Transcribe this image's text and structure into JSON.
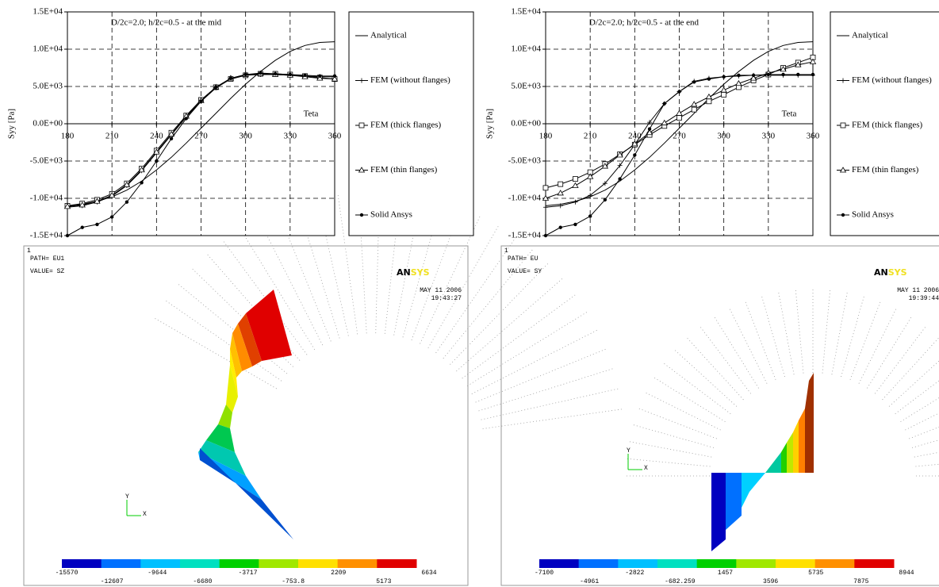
{
  "chart_data": [
    {
      "type": "line",
      "annotation": "D/2c=2.0; h/2c=0.5 - at the mid",
      "y_label": "Syy [Pa]",
      "x_label": "Teta",
      "x": [
        180,
        190,
        200,
        210,
        220,
        230,
        240,
        250,
        260,
        270,
        280,
        290,
        300,
        310,
        320,
        330,
        340,
        350,
        360
      ],
      "xlim": [
        180,
        360
      ],
      "xticks": [
        180,
        210,
        240,
        270,
        300,
        330,
        360
      ],
      "ylim": [
        -15000,
        15000
      ],
      "yticks": [
        {
          "value": -15000,
          "label": "-1.5E+04"
        },
        {
          "value": -10000,
          "label": "-1.0E+04"
        },
        {
          "value": -5000,
          "label": "-5.0E+03"
        },
        {
          "value": 0,
          "label": "0.0E+00"
        },
        {
          "value": 5000,
          "label": "5.0E+03"
        },
        {
          "value": 10000,
          "label": "1.0E+04"
        },
        {
          "value": 15000,
          "label": "1.5E+04"
        }
      ],
      "grid": true,
      "series": [
        {
          "name": "Analytical",
          "color": "#000000",
          "marker": "none",
          "values": [
            -11000,
            -10800,
            -10400,
            -9800,
            -8900,
            -7700,
            -6200,
            -4500,
            -2600,
            -600,
            1400,
            3400,
            5300,
            7000,
            8500,
            9700,
            10500,
            10900,
            11000
          ]
        },
        {
          "name": "FEM (without flanges)",
          "color": "#000000",
          "marker": "plus",
          "values": [
            -11200,
            -11000,
            -10500,
            -9700,
            -8300,
            -6300,
            -3900,
            -1500,
            900,
            3000,
            4800,
            6000,
            6500,
            6600,
            6600,
            6500,
            6400,
            6300,
            6300
          ]
        },
        {
          "name": "FEM (thick flanges)",
          "color": "#000000",
          "marker": "square",
          "values": [
            -11000,
            -10700,
            -10200,
            -9400,
            -8000,
            -6000,
            -3600,
            -1200,
            1100,
            3200,
            4900,
            6000,
            6500,
            6700,
            6700,
            6600,
            6400,
            6200,
            6000
          ]
        },
        {
          "name": "FEM (thin flanges)",
          "color": "#000000",
          "marker": "triangle",
          "values": [
            -11100,
            -10900,
            -10400,
            -9600,
            -8200,
            -6200,
            -3800,
            -1400,
            1000,
            3100,
            4900,
            6100,
            6600,
            6700,
            6600,
            6500,
            6300,
            6100,
            6000
          ]
        },
        {
          "name": "Solid Ansys",
          "color": "#000000",
          "marker": "dot",
          "values": [
            -15000,
            -13900,
            -13500,
            -12500,
            -10500,
            -7900,
            -5000,
            -2000,
            700,
            3000,
            4900,
            6100,
            6600,
            6800,
            6700,
            6600,
            6500,
            6400,
            6400
          ]
        }
      ]
    },
    {
      "type": "line",
      "annotation": "D/2c=2.0; h/2c=0.5 - at the end",
      "y_label": "Syy [Pa]",
      "x_label": "Teta",
      "x": [
        180,
        190,
        200,
        210,
        220,
        230,
        240,
        250,
        260,
        270,
        280,
        290,
        300,
        310,
        320,
        330,
        340,
        350,
        360
      ],
      "xlim": [
        180,
        360
      ],
      "xticks": [
        180,
        210,
        240,
        270,
        300,
        330,
        360
      ],
      "ylim": [
        -15000,
        15000
      ],
      "yticks": [
        {
          "value": -15000,
          "label": "-1.5E+04"
        },
        {
          "value": -10000,
          "label": "-1.0E+04"
        },
        {
          "value": -5000,
          "label": "-5.0E+03"
        },
        {
          "value": 0,
          "label": "0.0E+00"
        },
        {
          "value": 5000,
          "label": "5.0E+03"
        },
        {
          "value": 10000,
          "label": "1.0E+04"
        },
        {
          "value": 15000,
          "label": "1.5E+04"
        }
      ],
      "grid": true,
      "series": [
        {
          "name": "Analytical",
          "color": "#000000",
          "marker": "none",
          "values": [
            -11000,
            -10800,
            -10400,
            -9800,
            -8900,
            -7700,
            -6200,
            -4500,
            -2600,
            -600,
            1400,
            3400,
            5300,
            7000,
            8500,
            9700,
            10500,
            10900,
            11000
          ]
        },
        {
          "name": "FEM (without flanges)",
          "color": "#000000",
          "marker": "plus",
          "values": [
            -11200,
            -11000,
            -10500,
            -9600,
            -8000,
            -5600,
            -2800,
            200,
            2700,
            4300,
            5700,
            6100,
            6300,
            6400,
            6500,
            6500,
            6500,
            6500,
            6500
          ]
        },
        {
          "name": "FEM (thick flanges)",
          "color": "#000000",
          "marker": "square",
          "values": [
            -8600,
            -8100,
            -7400,
            -6500,
            -5400,
            -4100,
            -2800,
            -1500,
            -300,
            800,
            1900,
            3000,
            3900,
            4900,
            5800,
            6600,
            7500,
            8200,
            8900
          ]
        },
        {
          "name": "FEM (thin flanges)",
          "color": "#000000",
          "marker": "triangle",
          "values": [
            -10000,
            -9300,
            -8300,
            -7100,
            -5700,
            -4200,
            -2700,
            -1200,
            100,
            1400,
            2600,
            3600,
            4500,
            5400,
            6100,
            6800,
            7300,
            7900,
            8300
          ]
        },
        {
          "name": "Solid Ansys",
          "color": "#000000",
          "marker": "dot",
          "values": [
            -15000,
            -13900,
            -13500,
            -12400,
            -10200,
            -7400,
            -4200,
            -700,
            2700,
            4300,
            5600,
            6000,
            6300,
            6500,
            6500,
            6600,
            6600,
            6600,
            6600
          ]
        }
      ]
    }
  ],
  "ansys_panels": [
    {
      "index": "1",
      "path": "PATH= EU1",
      "value": "VALUE= SZ",
      "logo": [
        "AN",
        "SYS"
      ],
      "date": "MAY 11 2006",
      "time": "19:43:27",
      "triad": [
        "Y",
        "X"
      ],
      "legend": [
        "-15570",
        "-12607",
        "-9644",
        "-6680",
        "-3717",
        "-753.8",
        "2209",
        "5173",
        "6634"
      ]
    },
    {
      "index": "1",
      "path": "PATH= EU",
      "value": "VALUE= SY",
      "logo": [
        "AN",
        "SYS"
      ],
      "date": "MAY 11 2006",
      "time": "19:39:44",
      "triad": [
        "Y",
        "X"
      ],
      "legend": [
        "-7100",
        "-4961",
        "-2822",
        "-682.259",
        "1457",
        "3596",
        "5735",
        "7875",
        "8944"
      ]
    }
  ]
}
